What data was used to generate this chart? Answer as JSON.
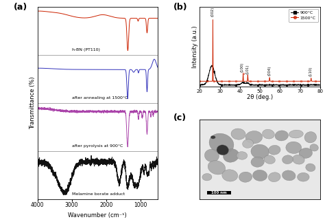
{
  "panel_a_label": "(a)",
  "panel_b_label": "(b)",
  "panel_c_label": "(c)",
  "ir_xlabel": "Wavenumber (cm⁻¹)",
  "ir_ylabel": "Transmittance (%)",
  "xrd_xlabel": "2θ (deg.)",
  "xrd_ylabel": "Intensity (a.u.)",
  "ir_traces": [
    {
      "label": "h-BN (PT110)",
      "color": "#cc2200"
    },
    {
      "label": "after annealing at 1500°C",
      "color": "#3333bb"
    },
    {
      "label": "after pyrolysis at 900°C",
      "color": "#aa44aa"
    },
    {
      "label": "Melamine borate adduct",
      "color": "#111111"
    }
  ],
  "xrd_color_900": "#111111",
  "xrd_color_1500": "#cc2200",
  "tem_bg_color": "#d8d8d8",
  "scalebar_label": "100 nm"
}
